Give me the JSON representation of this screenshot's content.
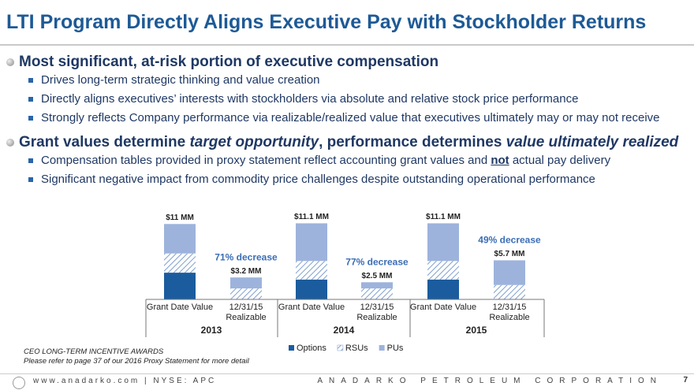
{
  "title": "LTI Program Directly Aligns Executive Pay with Stockholder Returns",
  "bullets": [
    {
      "parts": [
        {
          "text": "Most significant, at-risk portion of executive compensation"
        }
      ],
      "subs": [
        [
          {
            "text": "Drives long-term strategic thinking and value creation"
          }
        ],
        [
          {
            "text": "Directly aligns executives’ interests with stockholders via absolute and relative stock price performance"
          }
        ],
        [
          {
            "text": "Strongly reflects Company performance via realizable/realized value that executives ultimately may or may not receive"
          }
        ]
      ]
    },
    {
      "parts": [
        {
          "text": "Grant values determine "
        },
        {
          "text": "target opportunity",
          "italic": true
        },
        {
          "text": ", performance determines "
        },
        {
          "text": "value ultimately realized",
          "italic": true
        }
      ],
      "subs": [
        [
          {
            "text": "Compensation tables provided in proxy statement reflect accounting grant values and "
          },
          {
            "text": "not",
            "bold": true,
            "underline": true
          },
          {
            "text": " actual pay delivery"
          }
        ],
        [
          {
            "text": "Significant negative impact from commodity price challenges despite outstanding operational performance"
          }
        ]
      ]
    }
  ],
  "chart_data": {
    "type": "stacked_bar",
    "groups": [
      "2013",
      "2014",
      "2015"
    ],
    "categories": [
      "Grant Date Value",
      "12/31/15 Realizable",
      "Grant Date Value",
      "12/31/15 Realizable",
      "Grant Date Value",
      "12/31/15 Realizable"
    ],
    "series": [
      {
        "name": "Options",
        "color": "#1b5c9e",
        "values": [
          3.9,
          0,
          2.9,
          0,
          2.9,
          0
        ]
      },
      {
        "name": "RSUs",
        "color": "#7f9fcf",
        "pattern": "hatch",
        "values": [
          2.8,
          1.6,
          2.7,
          1.6,
          2.7,
          2.1
        ]
      },
      {
        "name": "PUs",
        "color": "#9db3dc",
        "values": [
          4.3,
          1.6,
          5.5,
          0.9,
          5.5,
          3.6
        ]
      }
    ],
    "totals": [
      11,
      3.2,
      11.1,
      2.5,
      11.1,
      5.7
    ],
    "total_labels": [
      "$11 MM",
      "$3.2 MM",
      "$11.1 MM",
      "$2.5 MM",
      "$11.1 MM",
      "$5.7 MM"
    ],
    "annotations": [
      "71% decrease",
      "77% decrease",
      "49% decrease"
    ],
    "legend": "bottom"
  },
  "notes": [
    "CEO LONG-TERM INCENTIVE AWARDS",
    "Please refer to page 37 of our 2016 Proxy Statement for more detail"
  ],
  "footer": {
    "left": "www.anadarko.com | NYSE: APC",
    "right": "ANADARKO PETROLEUM CORPORATION",
    "page": "7"
  }
}
